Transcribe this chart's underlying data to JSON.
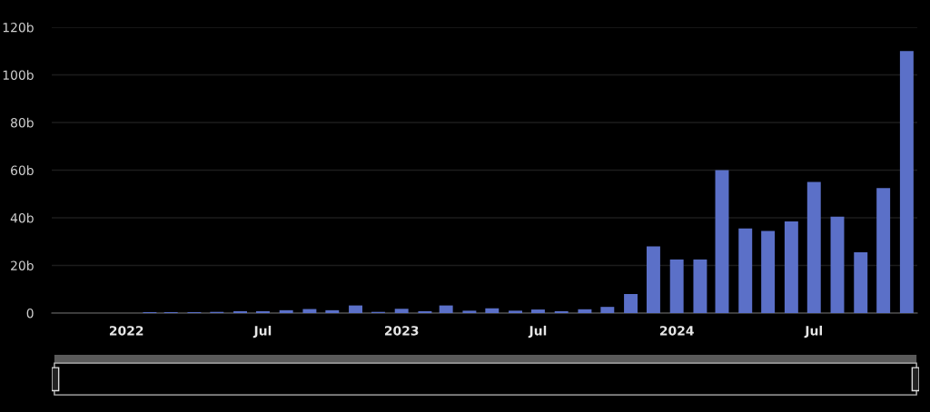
{
  "chart_data": {
    "type": "bar",
    "x": [
      "2022-02",
      "2022-03",
      "2022-04",
      "2022-05",
      "2022-06",
      "2022-07",
      "2022-08",
      "2022-09",
      "2022-10",
      "2022-11",
      "2022-12",
      "2023-01",
      "2023-02",
      "2023-03",
      "2023-04",
      "2023-05",
      "2023-06",
      "2023-07",
      "2023-08",
      "2023-09",
      "2023-10",
      "2023-11",
      "2023-12",
      "2024-01",
      "2024-02",
      "2024-03",
      "2024-04",
      "2024-05",
      "2024-06",
      "2024-07",
      "2024-08",
      "2024-09",
      "2024-10",
      "2024-11"
    ],
    "series": [
      {
        "color": "#5b70c8",
        "values": [
          0.4,
          0.4,
          0.4,
          0.5,
          0.8,
          0.8,
          1.2,
          1.7,
          1.2,
          3.2,
          0.5,
          1.8,
          0.8,
          3.2,
          1,
          2,
          1,
          1.5,
          0.8,
          1.6,
          2.6,
          8,
          28,
          22.5,
          22.5,
          60,
          35.5,
          34.5,
          38.5,
          55,
          40.5,
          25.5,
          52.5,
          110
        ]
      }
    ],
    "xlim": [
      "2021-09-24",
      "2024-11-15"
    ],
    "xticks": [
      {
        "value": "2022-01",
        "label": "2022"
      },
      {
        "value": "2022-07",
        "label": "Jul"
      },
      {
        "value": "2023-01",
        "label": "2023"
      },
      {
        "value": "2023-07",
        "label": "Jul"
      },
      {
        "value": "2024-01",
        "label": "2024"
      },
      {
        "value": "2024-07",
        "label": "Jul"
      }
    ],
    "ylim": [
      0,
      120
    ],
    "yticks": [
      0,
      {
        "value": 20,
        "label": "20b"
      },
      {
        "value": 40,
        "label": "40b"
      },
      {
        "value": 60,
        "label": "60b"
      },
      {
        "value": 80,
        "label": "80b"
      },
      {
        "value": 100,
        "label": "100b"
      },
      {
        "value": 120,
        "label": "120b"
      }
    ],
    "grid": "y",
    "legend": false
  }
}
